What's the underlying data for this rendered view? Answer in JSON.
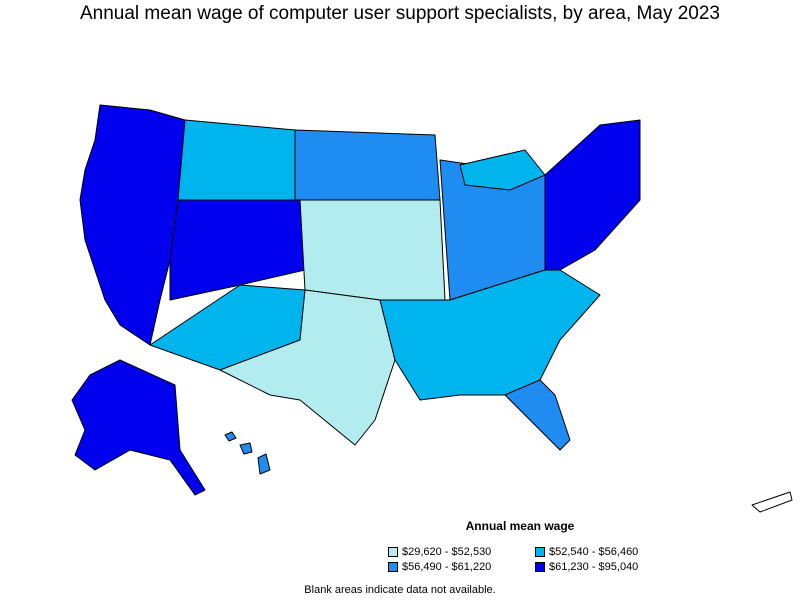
{
  "title": "Annual mean wage of computer user support specialists, by area, May 2023",
  "legend": {
    "title": "Annual mean wage",
    "items": [
      {
        "label": "$29,620 - $52,530",
        "color": "#b3ecee"
      },
      {
        "label": "$52,540 - $56,460",
        "color": "#00b4ee"
      },
      {
        "label": "$56,490 - $61,220",
        "color": "#1f8cf2"
      },
      {
        "label": "$61,230 - $95,040",
        "color": "#0000ee"
      }
    ]
  },
  "note": "Blank areas indicate data not available."
}
